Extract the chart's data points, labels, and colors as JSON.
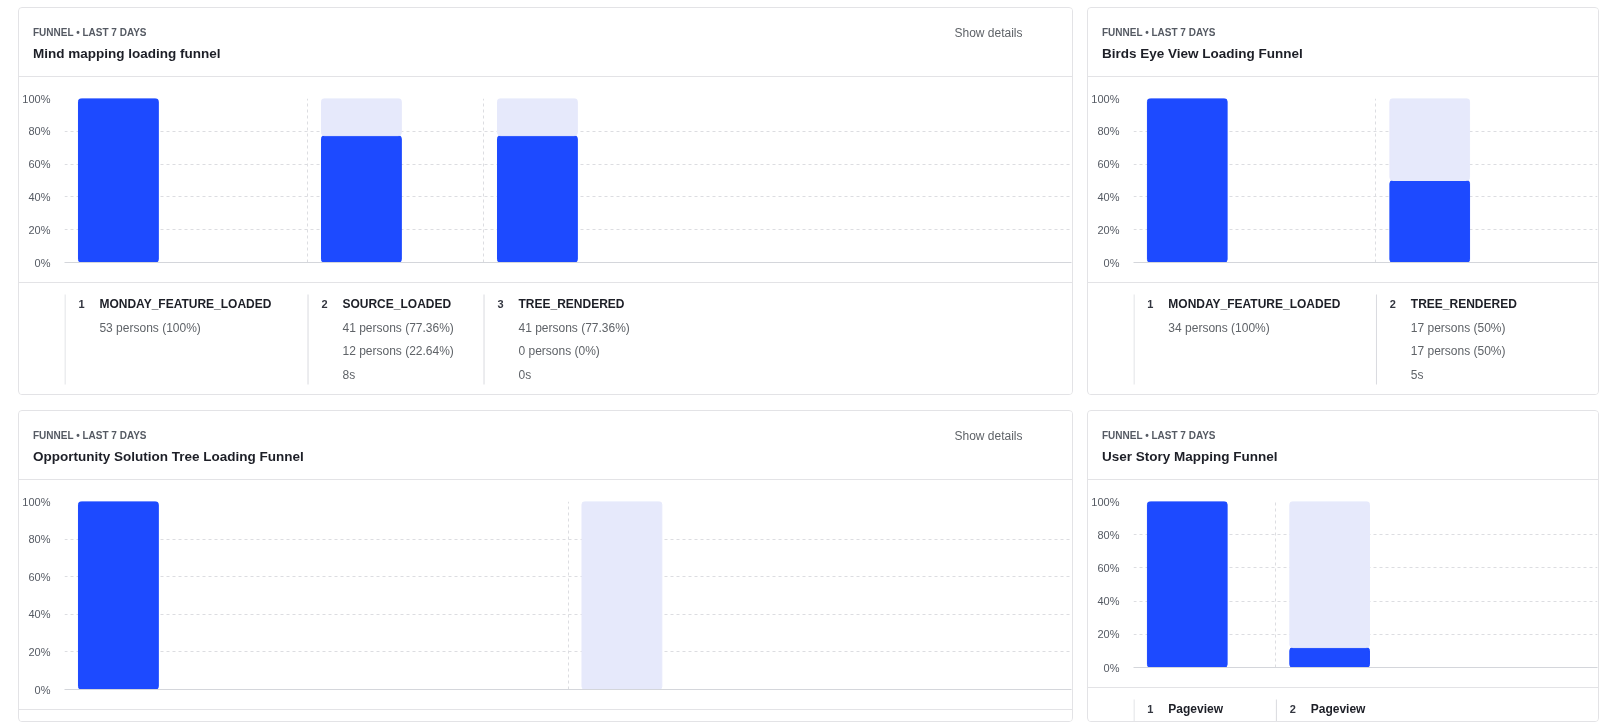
{
  "chart_data": [
    {
      "type": "bar",
      "subtitle": "FUNNEL • LAST 7 DAYS",
      "title": "Mind mapping loading funnel",
      "categories": [
        "1 MONDAY_FEATURE_LOADED",
        "2 SOURCE_LOADED",
        "3 TREE_RENDERED"
      ],
      "stacked": true,
      "series": [
        {
          "color": "#1d4aff",
          "values": [
            100,
            77.36,
            77.36
          ],
          "value_labels": [
            "53 persons (100%)",
            "41 persons (77.36%)",
            "41 persons (77.36%)"
          ]
        },
        {
          "color": "#e6e9fb",
          "values": [
            null,
            22.64,
            22.64
          ]
        }
      ],
      "ylim": [
        0,
        100
      ],
      "yticks": [
        {
          "value": 0,
          "label": "0%"
        },
        {
          "value": 20,
          "label": "20%"
        },
        {
          "value": 40,
          "label": "40%"
        },
        {
          "value": 60,
          "label": "60%"
        },
        {
          "value": 80,
          "label": "80%"
        },
        {
          "value": 100,
          "label": "100%"
        }
      ],
      "grid": true,
      "annotations": [
        "Show details",
        "12 persons (22.64%)",
        "8s",
        "0 persons (0%)",
        "0s"
      ]
    },
    {
      "type": "bar",
      "subtitle": "FUNNEL • LAST 7 DAYS",
      "title": "Birds Eye View Loading Funnel",
      "categories": [
        "1 MONDAY_FEATURE_LOADED",
        "2 TREE_RENDERED"
      ],
      "stacked": true,
      "series": [
        {
          "color": "#1d4aff",
          "values": [
            100,
            50
          ],
          "value_labels": [
            "34 persons (100%)",
            "17 persons (50%)"
          ]
        },
        {
          "color": "#e6e9fb",
          "values": [
            null,
            50
          ]
        }
      ],
      "ylim": [
        0,
        100
      ],
      "yticks": [
        {
          "value": 0,
          "label": "0%"
        },
        {
          "value": 20,
          "label": "20%"
        },
        {
          "value": 40,
          "label": "40%"
        },
        {
          "value": 60,
          "label": "60%"
        },
        {
          "value": 80,
          "label": "80%"
        },
        {
          "value": 100,
          "label": "100%"
        }
      ],
      "grid": true,
      "annotations": [
        "17 persons (50%)",
        "5s"
      ]
    },
    {
      "type": "bar",
      "subtitle": "FUNNEL • LAST 7 DAYS",
      "title": "Opportunity Solution Tree Loading Funnel",
      "categories": [
        null,
        null
      ],
      "stacked": true,
      "series": [
        {
          "color": "#1d4aff",
          "values": [
            100,
            null
          ]
        },
        {
          "color": "#e6e9fb",
          "values": [
            null,
            100
          ]
        }
      ],
      "ylim": [
        0,
        100
      ],
      "yticks": [
        {
          "value": 0,
          "label": "0%"
        },
        {
          "value": 20,
          "label": "20%"
        },
        {
          "value": 40,
          "label": "40%"
        },
        {
          "value": 60,
          "label": "60%"
        },
        {
          "value": 80,
          "label": "80%"
        },
        {
          "value": 100,
          "label": "100%"
        }
      ],
      "grid": true,
      "annotations": [
        "Show details"
      ]
    },
    {
      "type": "bar",
      "subtitle": "FUNNEL • LAST 7 DAYS",
      "title": "User Story Mapping Funnel",
      "categories": [
        "1 Pageview",
        "2 Pageview"
      ],
      "stacked": true,
      "series": [
        {
          "color": "#1d4aff",
          "values": [
            100,
            12
          ]
        },
        {
          "color": "#e6e9fb",
          "values": [
            null,
            88
          ]
        }
      ],
      "ylim": [
        0,
        100
      ],
      "yticks": [
        {
          "value": 0,
          "label": "0%"
        },
        {
          "value": 20,
          "label": "20%"
        },
        {
          "value": 40,
          "label": "40%"
        },
        {
          "value": 60,
          "label": "60%"
        },
        {
          "value": 80,
          "label": "80%"
        },
        {
          "value": 100,
          "label": "100%"
        }
      ],
      "grid": true
    }
  ]
}
